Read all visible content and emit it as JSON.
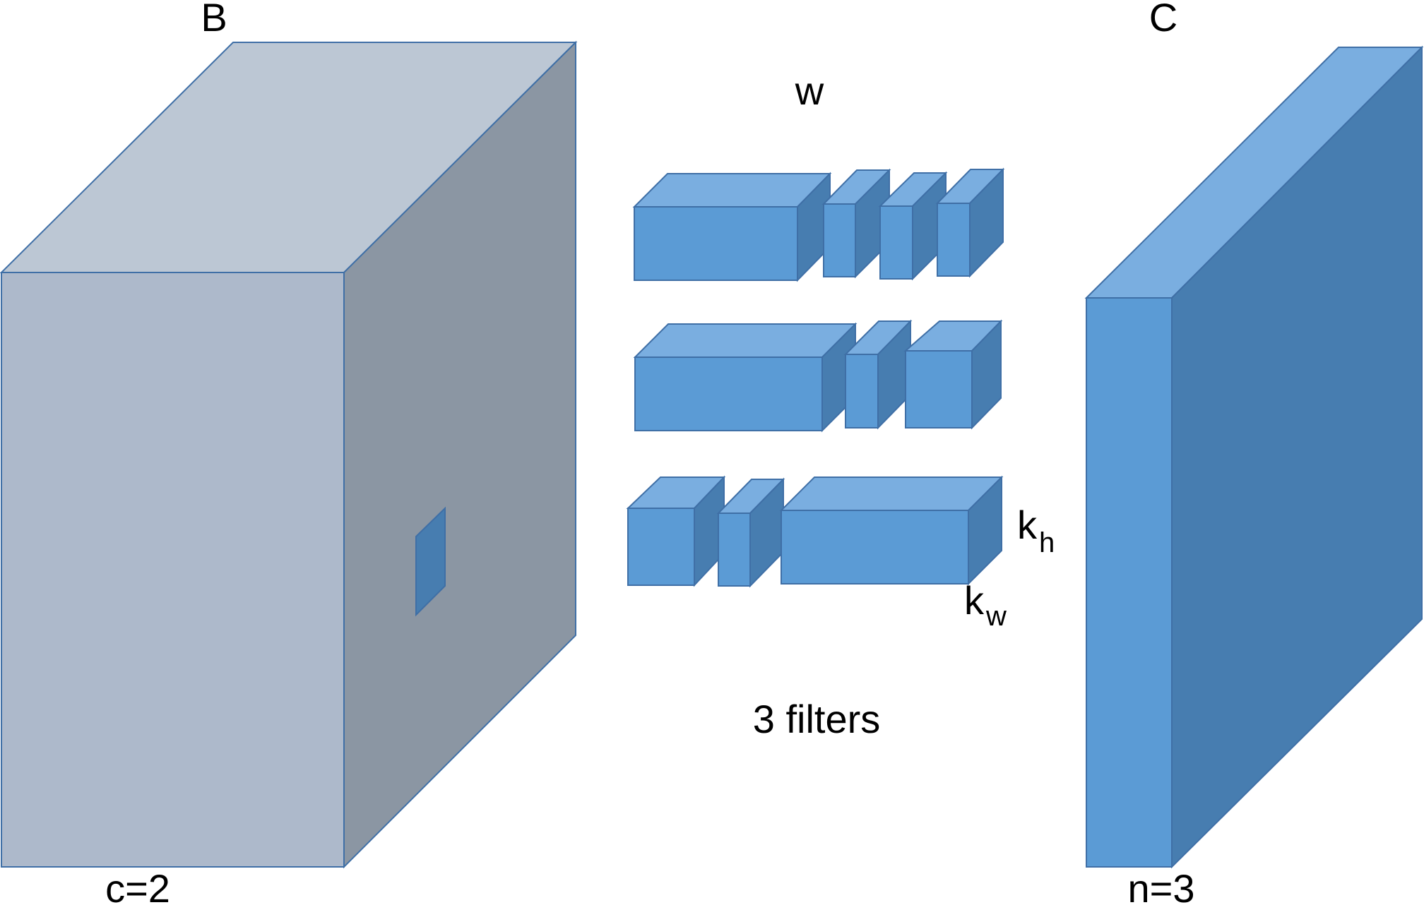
{
  "labels": {
    "input_tensor": "B",
    "input_channels": "c=2",
    "weights": "w",
    "filters_caption": "3 filters",
    "kernel_height_k": "k",
    "kernel_height_sub": "h",
    "kernel_width_k": "k",
    "kernel_width_sub": "w",
    "output_tensor": "C",
    "output_channels": "n=3"
  },
  "colors": {
    "input_front": "#adb9cb",
    "input_top": "#bcc7d4",
    "input_side": "#8b96a3",
    "box_front": "#5b9bd5",
    "box_top": "#7aaee0",
    "box_side": "#477db0",
    "edge": "#3f6fa6"
  }
}
